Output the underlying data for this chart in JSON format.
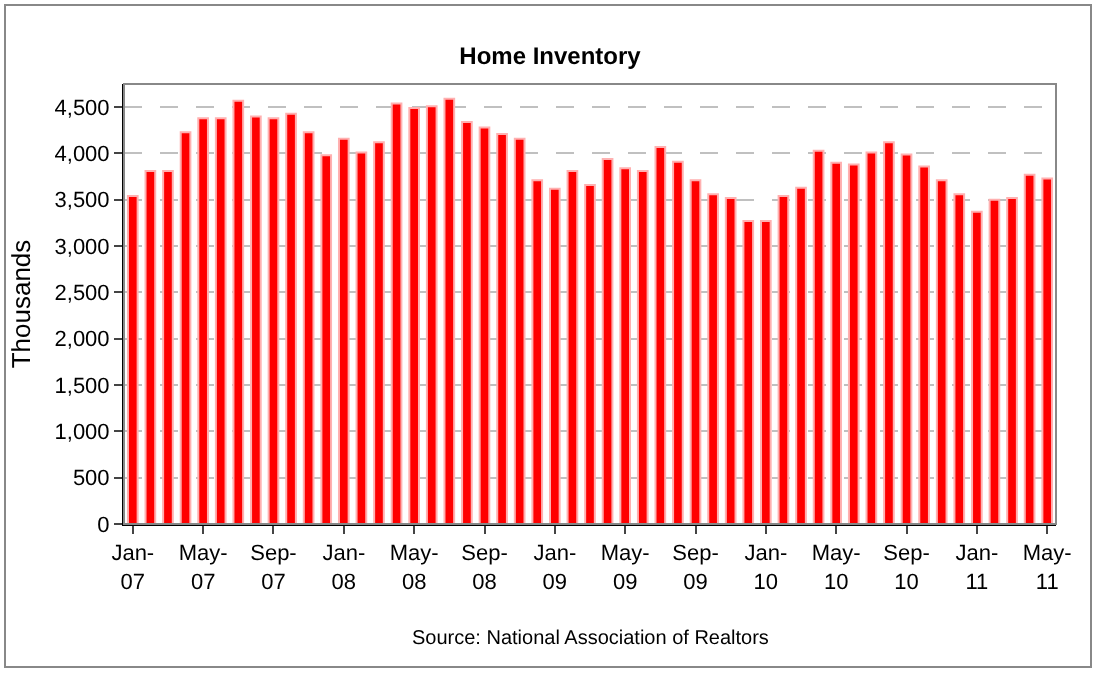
{
  "chart_data": {
    "type": "bar",
    "title": "Home Inventory",
    "ylabel": "Thousands",
    "color": "#ff0000",
    "categories": [
      "Jan-07",
      null,
      null,
      null,
      "May-07",
      null,
      null,
      null,
      "Sep-07",
      null,
      null,
      null,
      "Jan-08",
      null,
      null,
      null,
      "May-08",
      null,
      null,
      null,
      "Sep-08",
      null,
      null,
      null,
      "Jan-09",
      null,
      null,
      null,
      "May-09",
      null,
      null,
      null,
      "Sep-09",
      null,
      null,
      null,
      "Jan-10",
      null,
      null,
      null,
      "May-10",
      null,
      null,
      null,
      "Sep-10",
      null,
      null,
      null,
      "Jan-11",
      null,
      null,
      null,
      "May-11"
    ],
    "values": [
      3540,
      3810,
      3810,
      4230,
      4380,
      4380,
      4570,
      4400,
      4380,
      4430,
      4230,
      3980,
      4160,
      4010,
      4120,
      4540,
      4490,
      4510,
      4590,
      4340,
      4280,
      4210,
      4160,
      3710,
      3620,
      3810,
      3660,
      3940,
      3840,
      3810,
      4070,
      3910,
      3710,
      3560,
      3520,
      3270,
      3270,
      3540,
      3630,
      4030,
      3900,
      3880,
      4010,
      4120,
      3990,
      3860,
      3710,
      3560,
      3370,
      3500,
      3520,
      3770,
      3730
    ],
    "ylim": [
      0,
      4750
    ],
    "yticks": [
      0,
      {
        "value": 500,
        "label": "500"
      },
      {
        "value": 1000,
        "label": "1,000"
      },
      {
        "value": 1500,
        "label": "1,500"
      },
      {
        "value": 2000,
        "label": "2,000"
      },
      {
        "value": 2500,
        "label": "2,500"
      },
      {
        "value": 3000,
        "label": "3,000"
      },
      {
        "value": 3500,
        "label": "3,500"
      },
      {
        "value": 4000,
        "label": "4,000"
      },
      {
        "value": 4500,
        "label": "4,500"
      }
    ],
    "grid": "y",
    "annotations": [
      "Source: National Association of Realtors"
    ]
  }
}
